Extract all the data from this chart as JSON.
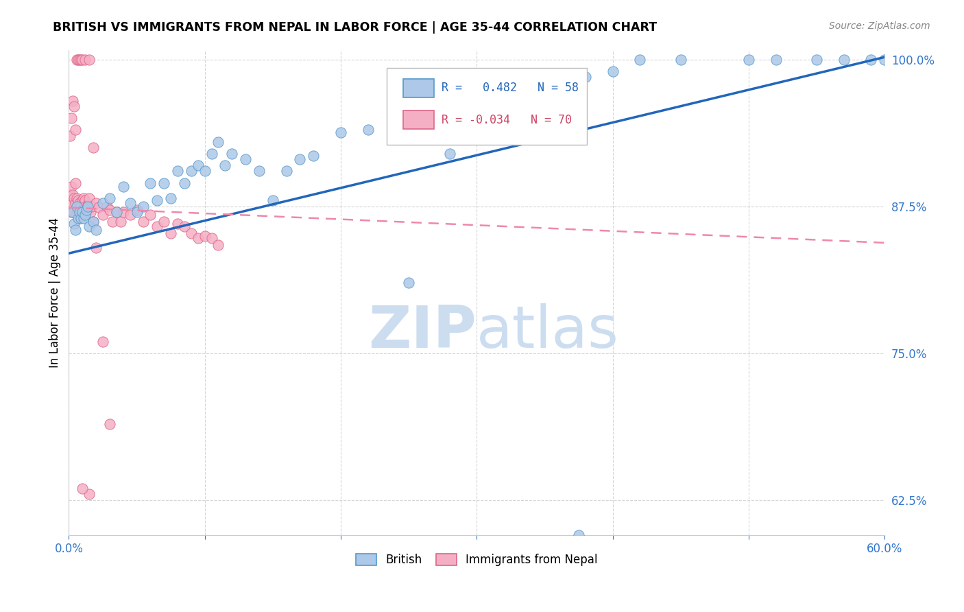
{
  "title": "BRITISH VS IMMIGRANTS FROM NEPAL IN LABOR FORCE | AGE 35-44 CORRELATION CHART",
  "source": "Source: ZipAtlas.com",
  "ylabel_label": "In Labor Force | Age 35-44",
  "x_min": 0.0,
  "x_max": 0.6,
  "y_min": 0.595,
  "y_max": 1.008,
  "x_ticks": [
    0.0,
    0.1,
    0.2,
    0.3,
    0.4,
    0.5,
    0.6
  ],
  "x_tick_labels": [
    "0.0%",
    "",
    "",
    "",
    "",
    "",
    "60.0%"
  ],
  "y_ticks": [
    0.625,
    0.75,
    0.875,
    1.0
  ],
  "y_tick_labels": [
    "62.5%",
    "75.0%",
    "87.5%",
    "100.0%"
  ],
  "british_color": "#adc8e8",
  "nepal_color": "#f5afc5",
  "british_edge_color": "#5599cc",
  "nepal_edge_color": "#dd6688",
  "british_line_color": "#2266bb",
  "nepal_line_color": "#ee88aa",
  "r_british": 0.482,
  "n_british": 58,
  "r_nepal": -0.034,
  "n_nepal": 70,
  "brit_line_x0": 0.0,
  "brit_line_y0": 0.835,
  "brit_line_x1": 0.6,
  "brit_line_y1": 1.002,
  "nepal_line_x0": 0.0,
  "nepal_line_y0": 0.874,
  "nepal_line_x1": 0.6,
  "nepal_line_y1": 0.844,
  "watermark_text": "ZIPatlas",
  "watermark_color": "#ccddf0",
  "brit_x": [
    0.003,
    0.004,
    0.005,
    0.006,
    0.007,
    0.008,
    0.009,
    0.01,
    0.011,
    0.012,
    0.013,
    0.014,
    0.015,
    0.018,
    0.02,
    0.025,
    0.03,
    0.035,
    0.04,
    0.045,
    0.05,
    0.055,
    0.06,
    0.065,
    0.07,
    0.075,
    0.08,
    0.085,
    0.09,
    0.095,
    0.1,
    0.105,
    0.11,
    0.115,
    0.12,
    0.13,
    0.14,
    0.15,
    0.16,
    0.17,
    0.18,
    0.2,
    0.22,
    0.25,
    0.28,
    0.3,
    0.32,
    0.35,
    0.38,
    0.4,
    0.42,
    0.45,
    0.5,
    0.52,
    0.55,
    0.57,
    0.59,
    0.6
  ],
  "brit_y": [
    0.87,
    0.86,
    0.855,
    0.875,
    0.865,
    0.87,
    0.865,
    0.87,
    0.865,
    0.868,
    0.872,
    0.875,
    0.858,
    0.862,
    0.855,
    0.878,
    0.882,
    0.87,
    0.892,
    0.878,
    0.87,
    0.875,
    0.895,
    0.88,
    0.895,
    0.882,
    0.905,
    0.895,
    0.905,
    0.91,
    0.905,
    0.92,
    0.93,
    0.91,
    0.92,
    0.915,
    0.905,
    0.88,
    0.905,
    0.915,
    0.918,
    0.938,
    0.94,
    0.81,
    0.92,
    0.95,
    0.96,
    0.978,
    0.985,
    0.99,
    1.0,
    1.0,
    1.0,
    1.0,
    1.0,
    1.0,
    1.0,
    1.0
  ],
  "nepal_x": [
    0.001,
    0.001,
    0.002,
    0.002,
    0.003,
    0.003,
    0.004,
    0.004,
    0.005,
    0.005,
    0.006,
    0.006,
    0.007,
    0.007,
    0.008,
    0.008,
    0.009,
    0.009,
    0.01,
    0.01,
    0.011,
    0.011,
    0.012,
    0.012,
    0.013,
    0.014,
    0.015,
    0.016,
    0.017,
    0.018,
    0.02,
    0.022,
    0.025,
    0.028,
    0.03,
    0.032,
    0.035,
    0.038,
    0.04,
    0.045,
    0.05,
    0.055,
    0.06,
    0.065,
    0.07,
    0.075,
    0.08,
    0.085,
    0.09,
    0.095,
    0.1,
    0.105,
    0.11,
    0.001,
    0.002,
    0.003,
    0.004,
    0.005,
    0.006,
    0.007,
    0.008,
    0.009,
    0.01,
    0.012,
    0.015,
    0.018,
    0.02,
    0.025,
    0.03,
    0.015
  ],
  "nepal_y": [
    0.878,
    0.885,
    0.892,
    0.87,
    0.878,
    0.885,
    0.87,
    0.882,
    0.878,
    0.895,
    0.868,
    0.882,
    0.872,
    0.88,
    0.865,
    0.878,
    0.87,
    0.876,
    0.872,
    0.88,
    0.882,
    0.872,
    0.88,
    0.875,
    0.87,
    0.876,
    0.882,
    0.87,
    0.875,
    0.862,
    0.878,
    0.874,
    0.868,
    0.875,
    0.872,
    0.862,
    0.87,
    0.862,
    0.87,
    0.868,
    0.872,
    0.862,
    0.868,
    0.858,
    0.862,
    0.852,
    0.86,
    0.858,
    0.852,
    0.848,
    0.85,
    0.848,
    0.842,
    0.935,
    0.95,
    0.965,
    0.96,
    0.94,
    1.0,
    1.0,
    1.0,
    1.0,
    1.0,
    1.0,
    1.0,
    0.925,
    0.84,
    0.76,
    0.69,
    0.63
  ],
  "nepal_outlier_x": [
    0.01
  ],
  "nepal_outlier_y": [
    0.635
  ],
  "brit_outlier_x": [
    0.375
  ],
  "brit_outlier_y": [
    0.595
  ]
}
